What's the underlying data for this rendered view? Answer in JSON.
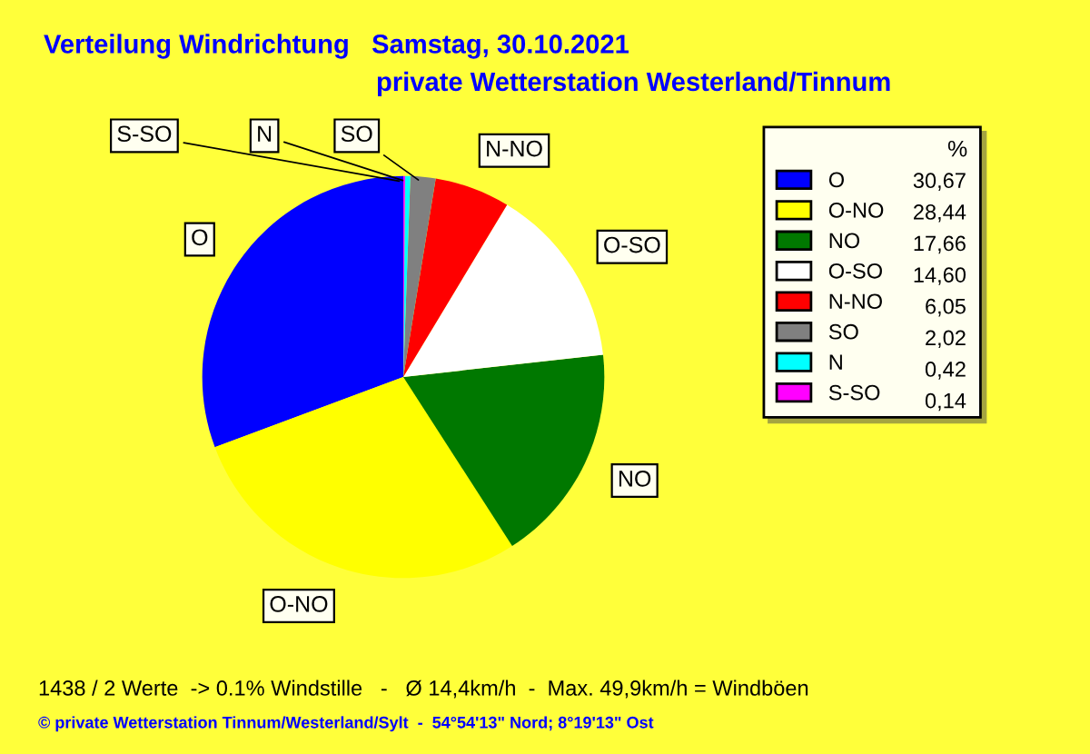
{
  "chart_data": {
    "type": "pie",
    "title": "Verteilung Windrichtung   Samstag, 30.10.2021",
    "subtitle": "private Wetterstation Westerland/Tinnum",
    "categories": [
      "O",
      "O-NO",
      "NO",
      "O-SO",
      "N-NO",
      "SO",
      "N",
      "S-SO"
    ],
    "values": [
      30.67,
      28.44,
      17.66,
      14.6,
      6.05,
      2.02,
      0.42,
      0.14
    ],
    "value_labels": [
      "30,67",
      "28,44",
      "17,66",
      "14,60",
      "6,05",
      "2,02",
      "0,42",
      "0,14"
    ],
    "colors": [
      "#0000ff",
      "#ffff00",
      "#007800",
      "#ffffff",
      "#ff0000",
      "#808080",
      "#00ffff",
      "#ff00ff"
    ],
    "legend": "right",
    "legend_title": "%",
    "annotations": [
      "1438 / 2 Werte  -> 0.1% Windstille   -   Ø 14,4km/h  -  Max. 49,9km/h = Windböen",
      "© private Wetterstation Tinnum/Westerland/Sylt  -  54°54'13\" Nord; 8°19'13\" Ost"
    ]
  }
}
